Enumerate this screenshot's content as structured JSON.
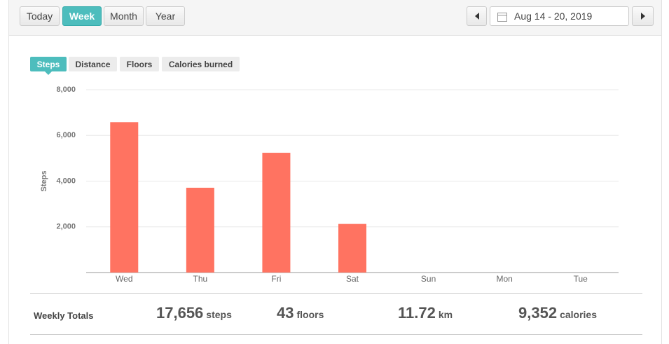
{
  "toolbar": {
    "buttons": [
      "Today",
      "Week",
      "Month",
      "Year"
    ],
    "active_button": 1,
    "date_range": "Aug 14 - 20, 2019"
  },
  "tabs": {
    "items": [
      "Steps",
      "Distance",
      "Floors",
      "Calories burned"
    ],
    "active": 0
  },
  "chart_data": {
    "type": "bar",
    "y_label": "Steps",
    "categories": [
      "Wed",
      "Thu",
      "Fri",
      "Sat",
      "Sun",
      "Mon",
      "Tue"
    ],
    "values": [
      6580,
      3710,
      5240,
      2126,
      null,
      null,
      null
    ],
    "color": "#ff7361",
    "ylim": [
      0,
      8000
    ],
    "yticks": [
      {
        "value": 2000,
        "label": "2,000"
      },
      {
        "value": 4000,
        "label": "4,000"
      },
      {
        "value": 6000,
        "label": "6,000"
      },
      {
        "value": 8000,
        "label": "8,000"
      }
    ],
    "grid": true
  },
  "totals": {
    "label": "Weekly Totals",
    "items": [
      {
        "value": "17,656",
        "unit": "steps"
      },
      {
        "value": "43",
        "unit": "floors"
      },
      {
        "value": "11.72",
        "unit": "km"
      },
      {
        "value": "9,352",
        "unit": "calories"
      }
    ]
  }
}
